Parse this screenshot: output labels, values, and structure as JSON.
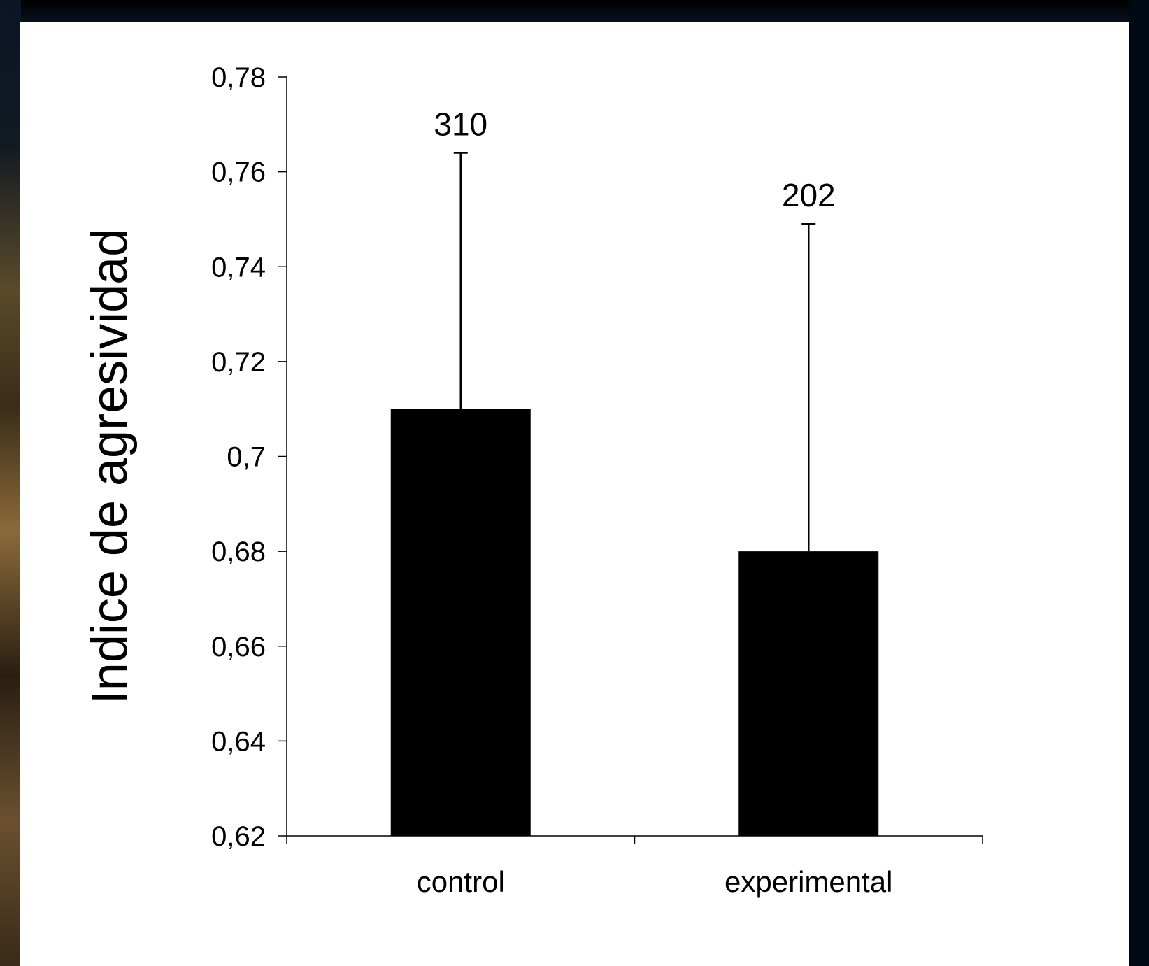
{
  "chart_data": {
    "type": "bar",
    "categories": [
      "control",
      "experimental"
    ],
    "values": [
      0.71,
      0.68
    ],
    "error_upper": [
      0.764,
      0.749
    ],
    "data_labels": [
      "310",
      "202"
    ],
    "ylabel": "Indice de agresividad",
    "xlabel": "",
    "ylim": [
      0.62,
      0.78
    ],
    "yticks": [
      "0,62",
      "0,64",
      "0,66",
      "0,68",
      "0,7",
      "0,72",
      "0,74",
      "0,76",
      "0,78"
    ],
    "ytick_values": [
      0.62,
      0.64,
      0.66,
      0.68,
      0.7,
      0.72,
      0.74,
      0.76,
      0.78
    ],
    "grid": false,
    "bar_color": "#000000"
  }
}
